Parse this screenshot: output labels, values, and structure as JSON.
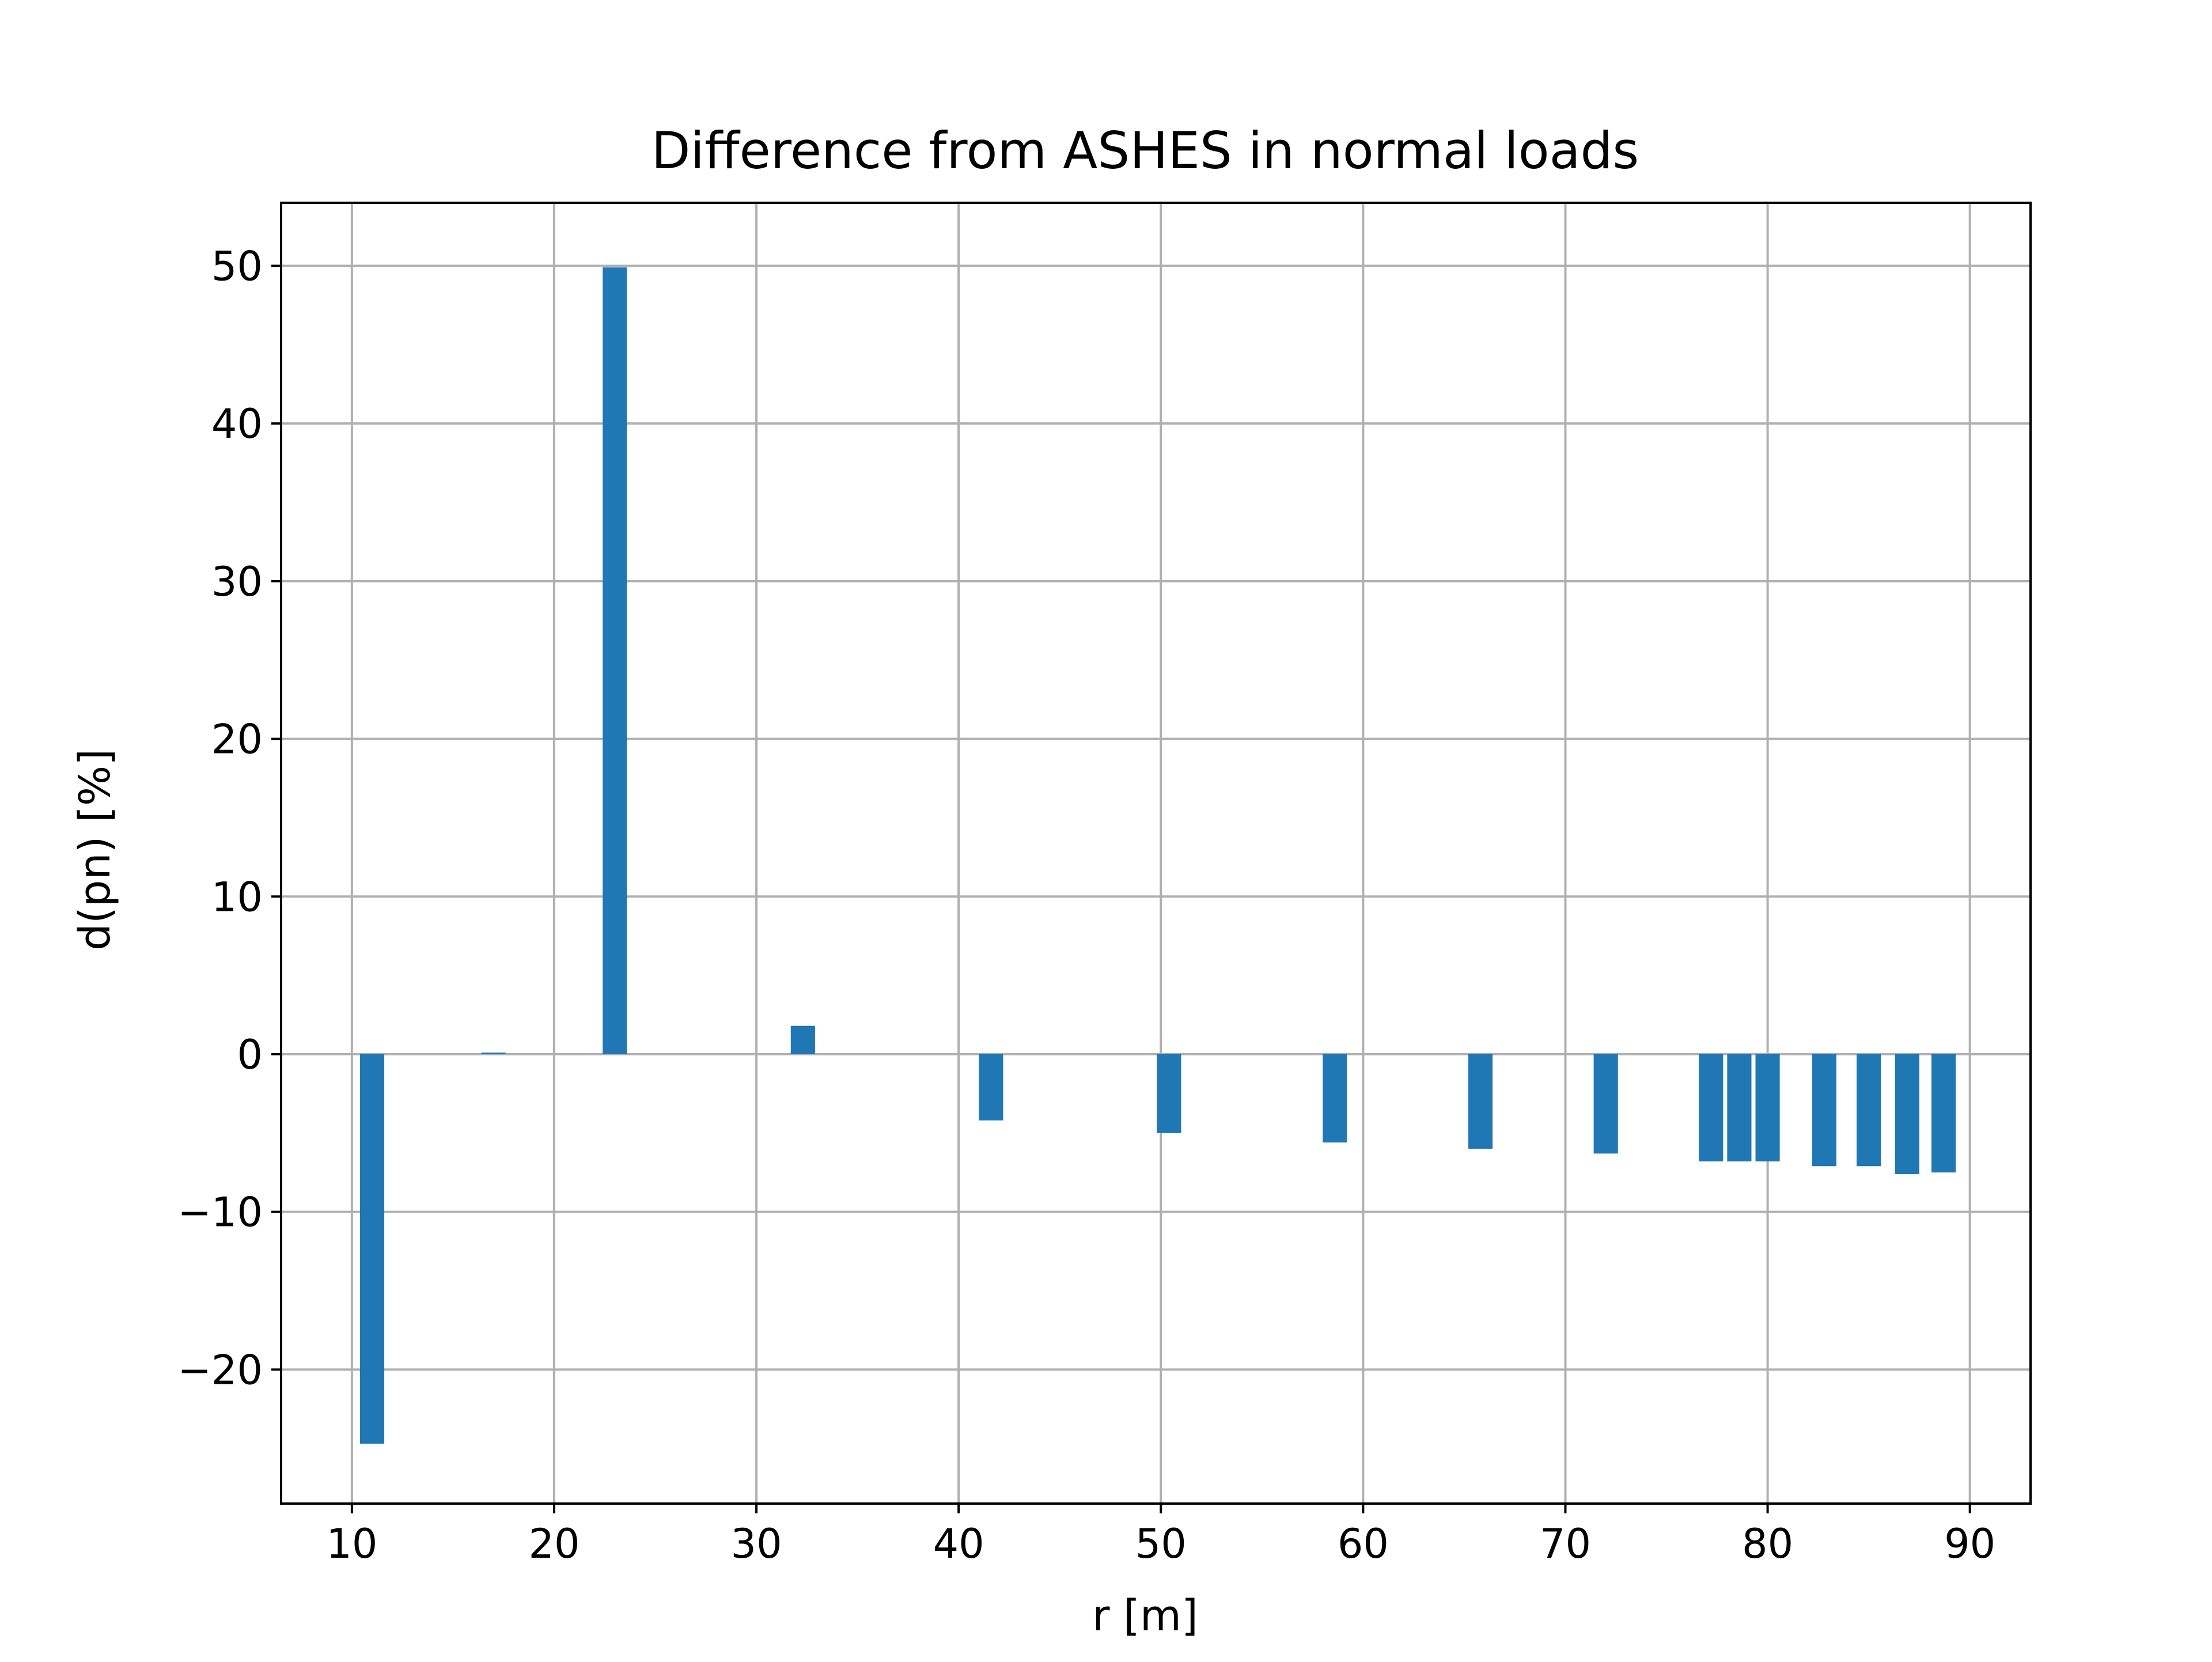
{
  "chart_data": {
    "type": "bar",
    "title": "Difference from ASHES in normal loads",
    "xlabel": "r [m]",
    "ylabel": "d(pn) [%]",
    "xlim": [
      6.5,
      93.0
    ],
    "ylim": [
      -28.5,
      54.0
    ],
    "xticks": [
      10,
      20,
      30,
      40,
      50,
      60,
      70,
      80,
      90
    ],
    "yticks": [
      -20,
      -10,
      0,
      10,
      20,
      30,
      40,
      50
    ],
    "xtick_labels": [
      "10",
      "20",
      "30",
      "40",
      "50",
      "60",
      "70",
      "80",
      "90"
    ],
    "ytick_labels": [
      "−20",
      "−10",
      "0",
      "10",
      "20",
      "30",
      "40",
      "50"
    ],
    "grid": true,
    "bar_width": 1.2,
    "bar_color": "#1f77b4",
    "x": [
      11.0,
      17.0,
      23.0,
      32.3,
      41.6,
      50.4,
      58.6,
      65.8,
      72.0,
      77.2,
      78.6,
      80.0,
      82.8,
      85.0,
      86.9,
      88.7
    ],
    "values": [
      -24.7,
      0.1,
      49.9,
      1.8,
      -4.2,
      -5.0,
      -5.6,
      -6.0,
      -6.3,
      -6.8,
      -6.8,
      -6.8,
      -7.1,
      -7.1,
      -7.6,
      -7.5
    ]
  }
}
